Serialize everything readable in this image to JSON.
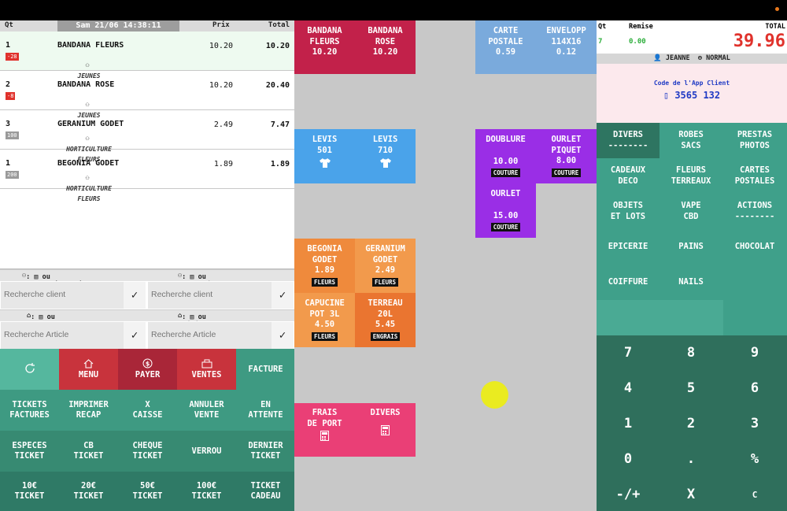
{
  "ticket": {
    "headers": {
      "qt": "Qt",
      "prix": "Prix",
      "total": "Total"
    },
    "datetime": "Sam 21/06 14:38:11",
    "lines": [
      {
        "qt": "1",
        "badge": "-28",
        "badge_color": "#e0322c",
        "name": "BANDANA FLEURS",
        "category": "JEUNES",
        "prix": "10.20",
        "total": "10.20"
      },
      {
        "qt": "2",
        "badge": "-8",
        "badge_color": "#e0322c",
        "name": "BANDANA ROSE",
        "category": "JEUNES",
        "prix": "10.20",
        "total": "20.40"
      },
      {
        "qt": "3",
        "badge": "100",
        "badge_color": "#9a9a9a",
        "name": "GERANIUM GODET",
        "category": "HORTICULTURE FLEURS",
        "prix": "2.49",
        "total": "7.47"
      },
      {
        "qt": "1",
        "badge": "200",
        "badge_color": "#9a9a9a",
        "name": "BEGONIA GODET",
        "category": "HORTICULTURE FLEURS",
        "prix": "1.89",
        "total": "1.89"
      }
    ]
  },
  "search": {
    "client_hint_1": ": ▥ ou Tel/Email/Social",
    "client_hint_2": ": ▥ ou Nom/Prénom",
    "client_placeholder": "Recherche client",
    "article_hint_1": ": ▥ ou Nom complet",
    "article_hint_2": ": ▥ ou Référence",
    "article_placeholder": "Recherche Article"
  },
  "actions": {
    "menu": "MENU",
    "payer": "PAYER",
    "ventes": "VENTES",
    "facture": "FACTURE",
    "tickets_factures": [
      "TICKETS",
      "FACTURES"
    ],
    "imprimer_recap": [
      "IMPRIMER",
      "RECAP"
    ],
    "x_caisse": [
      "X",
      "CAISSE"
    ],
    "annuler_vente": [
      "ANNULER",
      "VENTE"
    ],
    "en_attente": [
      "EN",
      "ATTENTE"
    ],
    "especes": [
      "ESPECES",
      "TICKET"
    ],
    "cb": [
      "CB",
      "TICKET"
    ],
    "cheque": [
      "CHEQUE",
      "TICKET"
    ],
    "verrou": "VERROU",
    "dernier": [
      "DERNIER",
      "TICKET"
    ],
    "t10": [
      "10€",
      "TICKET"
    ],
    "t20": [
      "20€",
      "TICKET"
    ],
    "t50": [
      "50€",
      "TICKET"
    ],
    "t100": [
      "100€",
      "TICKET"
    ],
    "cadeau": [
      "TICKET",
      "CADEAU"
    ]
  },
  "tiles": {
    "bandana_fleurs": [
      "BANDANA",
      "FLEURS",
      "10.20"
    ],
    "bandana_rose": [
      "BANDANA",
      "ROSE",
      "10.20"
    ],
    "carte_postale": [
      "CARTE",
      "POSTALE",
      "0.59"
    ],
    "enveloppe": [
      "ENVELOPP",
      "114X16",
      "0.12"
    ],
    "levis_501": [
      "LEVIS",
      "501"
    ],
    "levis_710": [
      "LEVIS",
      "710"
    ],
    "doublure": [
      "DOUBLURE",
      "10.00",
      "COUTURE"
    ],
    "ourlet_piquet": [
      "OURLET",
      "PIQUET",
      "8.00",
      "COUTURE"
    ],
    "ourlet": [
      "OURLET",
      "15.00",
      "COUTURE"
    ],
    "begonia": [
      "BEGONIA",
      "GODET",
      "1.89",
      "FLEURS"
    ],
    "geranium": [
      "GERANIUM",
      "GODET",
      "2.49",
      "FLEURS"
    ],
    "capucine": [
      "CAPUCINE",
      "POT 3L",
      "4.50",
      "FLEURS"
    ],
    "terreau": [
      "TERREAU",
      "20L",
      "5.45",
      "ENGRAIS"
    ],
    "frais_port": [
      "FRAIS",
      "DE PORT"
    ],
    "divers": [
      "DIVERS"
    ]
  },
  "summary": {
    "qt_label": "Qt",
    "qt": "7",
    "remise_label": "Remise",
    "remise": "0.00",
    "total_label": "TOTAL",
    "total": "39.96",
    "user": "JEANNE",
    "mode": "NORMAL",
    "app_label": "Code de l'App Client",
    "app_code": "3565 132"
  },
  "categories": [
    [
      "DIVERS",
      "--------"
    ],
    [
      "ROBES",
      "SACS"
    ],
    [
      "PRESTAS",
      "PHOTOS"
    ],
    [
      "CADEAUX",
      "DECO"
    ],
    [
      "FLEURS",
      "TERREAUX"
    ],
    [
      "CARTES",
      "POSTALES"
    ],
    [
      "OBJETS",
      "ET LOTS"
    ],
    [
      "VAPE",
      "CBD"
    ],
    [
      "ACTIONS",
      "--------"
    ],
    [
      "EPICERIE"
    ],
    [
      "PAINS"
    ],
    [
      "CHOCOLAT"
    ],
    [
      "COIFFURE"
    ],
    [
      "NAILS"
    ]
  ],
  "keypad": [
    "7",
    "8",
    "9",
    "4",
    "5",
    "6",
    "1",
    "2",
    "3",
    "0",
    ".",
    "%",
    "-/+",
    "X",
    "C"
  ],
  "colors": {
    "red_tile": "#c2214a",
    "blue_tile": "#7aaadc",
    "lightblue_tile": "#4aa3ea",
    "purple_tile": "#9a2ee6",
    "orange_tile": "#ef8a3c",
    "orange_dark": "#ea7530",
    "pink_tile": "#ea3f76",
    "teal": "#3fa08a",
    "teal_dark": "#2f6f5c"
  }
}
